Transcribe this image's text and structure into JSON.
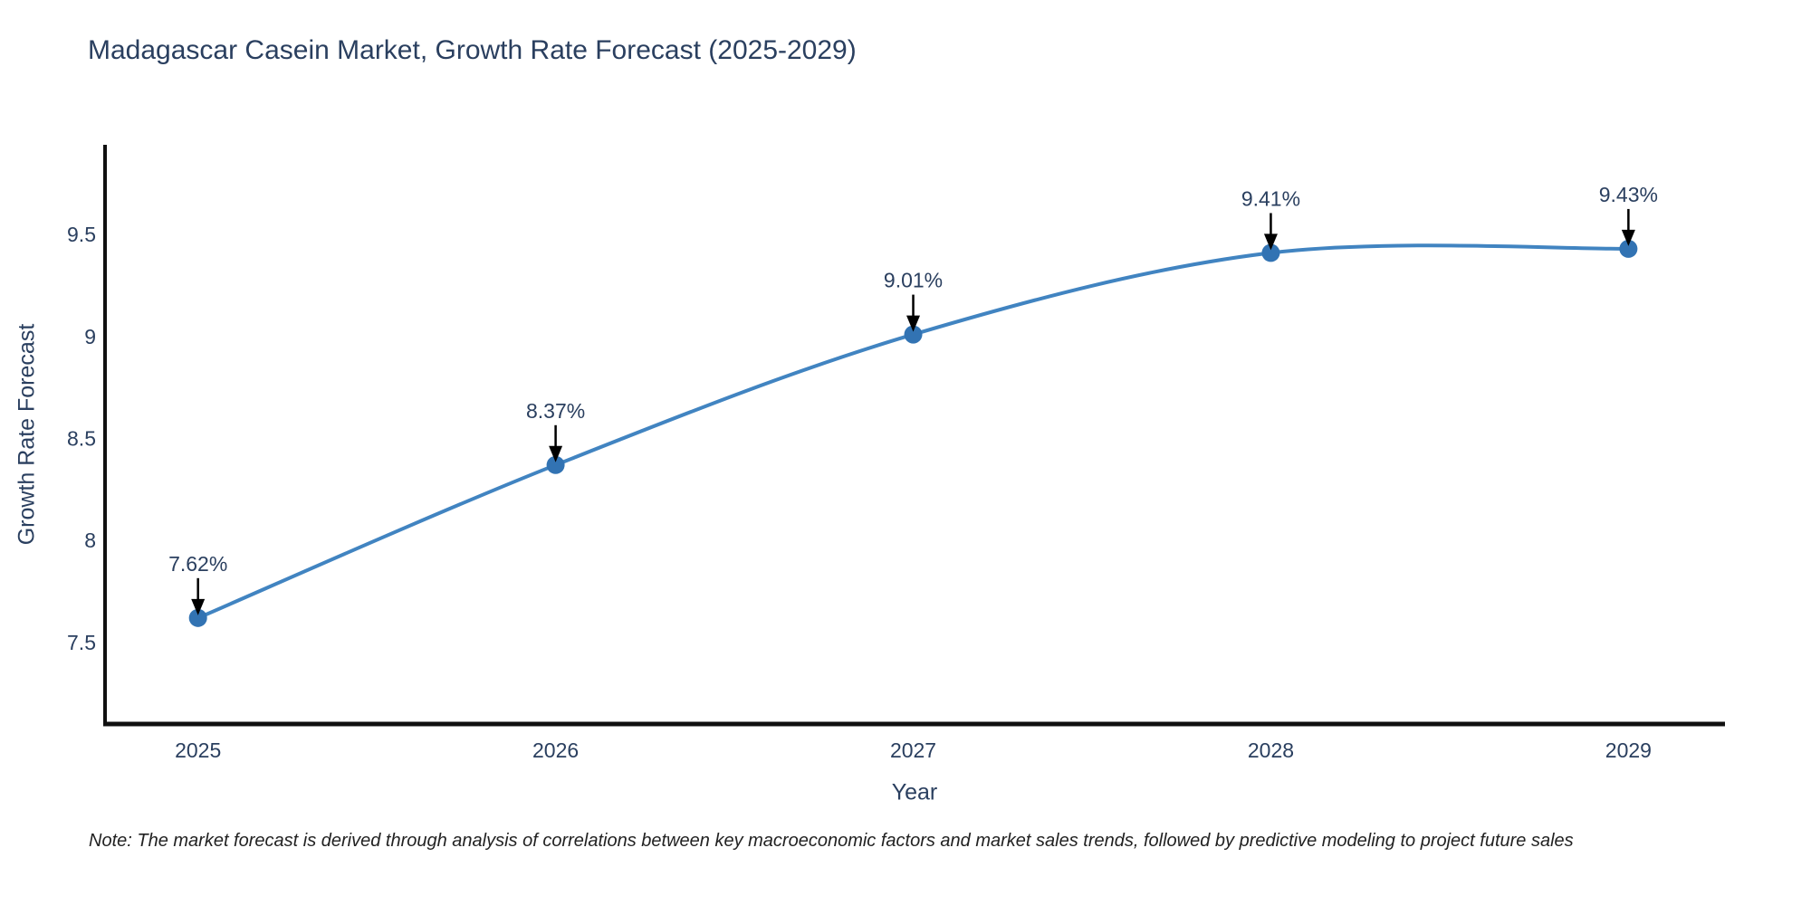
{
  "chart_data": {
    "type": "line",
    "title": "Madagascar Casein Market, Growth Rate Forecast (2025-2029)",
    "xlabel": "Year",
    "ylabel": "Growth Rate Forecast",
    "x": [
      2025,
      2026,
      2027,
      2028,
      2029
    ],
    "series": [
      {
        "name": "Growth Rate Forecast",
        "values": [
          7.62,
          8.37,
          9.01,
          9.41,
          9.43
        ]
      }
    ],
    "point_labels": [
      "7.62%",
      "8.37%",
      "9.01%",
      "9.41%",
      "9.43%"
    ],
    "xtick_labels": [
      "2025",
      "2026",
      "2027",
      "2028",
      "2029"
    ],
    "yticks": [
      7.5,
      8,
      8.5,
      9,
      9.5
    ],
    "ytick_labels": [
      "7.5",
      "8",
      "8.5",
      "9",
      "9.5"
    ],
    "xlim": [
      2024.74,
      2029.27
    ],
    "ylim": [
      7.1,
      9.94
    ],
    "line_shape": "spline",
    "grid": false,
    "legend": "none",
    "marker": "circle",
    "annotation_style": "arrow-down",
    "note": "Note: The market forecast is derived through analysis of correlations between key macroeconomic factors and market sales trends, followed by predictive modeling to project future sales",
    "colors": {
      "background": "#ffffff",
      "line": "#4184c1",
      "marker": "#3273b3",
      "axis": "#101010",
      "text": "#2a3f5f",
      "annotation_arrow": "#000000",
      "note_text": "#222222"
    }
  }
}
